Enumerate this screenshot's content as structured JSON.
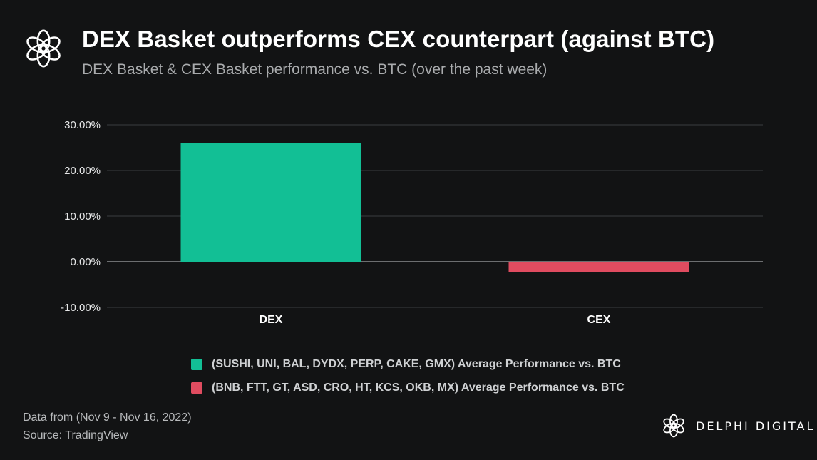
{
  "header": {
    "title": "DEX Basket outperforms CEX counterpart (against BTC)",
    "subtitle": "DEX Basket & CEX Basket performance vs. BTC (over the past week)"
  },
  "footer": {
    "data_range": "Data from (Nov 9 - Nov 16, 2022)",
    "source": "Source: TradingView"
  },
  "brand": {
    "name": "DELPHI DIGITAL",
    "icon": "delphi-logo-icon"
  },
  "colors": {
    "background": "#121314",
    "dex": "#12bf95",
    "cex": "#e04c60",
    "grid": "#3a3c3f"
  },
  "chart_data": {
    "type": "bar",
    "categories": [
      "DEX",
      "CEX"
    ],
    "values": [
      26.0,
      -2.3
    ],
    "ylim": [
      -10,
      30
    ],
    "yticks": [
      30,
      20,
      10,
      0,
      -10
    ],
    "ytick_labels": [
      "30.00%",
      "20.00%",
      "10.00%",
      "0.00%",
      "-10.00%"
    ],
    "grid": true,
    "legend": [
      {
        "label": "(SUSHI, UNI, BAL, DYDX, PERP, CAKE, GMX) Average Performance vs. BTC",
        "color": "#12bf95"
      },
      {
        "label": "(BNB, FTT, GT, ASD, CRO, HT, KCS, OKB, MX) Average Performance vs. BTC",
        "color": "#e04c60"
      }
    ],
    "legend_position": "bottom"
  }
}
